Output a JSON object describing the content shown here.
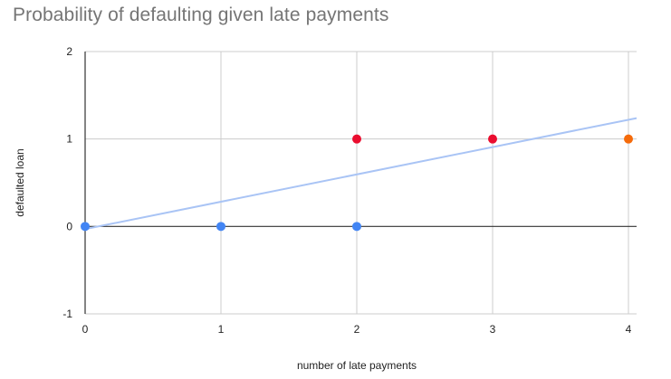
{
  "chart_data": {
    "type": "scatter",
    "title": "Probability of defaulting given late payments",
    "xlabel": "number of late payments",
    "ylabel": "defaulted loan",
    "xlim": [
      0,
      4
    ],
    "ylim": [
      -1,
      2
    ],
    "x_ticks": [
      "0",
      "1",
      "2",
      "3",
      "4"
    ],
    "y_ticks": [
      "-1",
      "0",
      "1",
      "2"
    ],
    "grid": true,
    "legend": "none",
    "points": [
      {
        "x": 0,
        "y": 0,
        "color": "#4285f4"
      },
      {
        "x": 1,
        "y": 0,
        "color": "#4285f4"
      },
      {
        "x": 2,
        "y": 0,
        "color": "#4285f4"
      },
      {
        "x": 2,
        "y": 1,
        "color": "#ea0d2f"
      },
      {
        "x": 3,
        "y": 1,
        "color": "#ea0d2f"
      },
      {
        "x": 4,
        "y": 1,
        "color": "#f56b0b"
      }
    ],
    "trendline": {
      "type": "linear",
      "color": "#a9c4f5",
      "start": {
        "x": 0,
        "y": -0.03
      },
      "end": {
        "x": 4,
        "y": 1.22
      }
    }
  }
}
